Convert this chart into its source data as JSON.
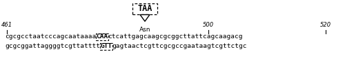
{
  "figsize": [
    5.0,
    1.01
  ],
  "dpi": 100,
  "bg_color": "#ffffff",
  "taa_box_text": "TAA",
  "taa_fontsize": 8.5,
  "asn_text": "Asn",
  "asn_fontsize": 6.5,
  "num_461": "461",
  "num_500": "500",
  "num_520": "520",
  "num_fontsize": 6.0,
  "seq1_before_bold": "cgcgcctaatcccagcaataaaa",
  "seq1_bold": "CAA",
  "seq1_after_bold": "ctcattgagcaagcgcggcttattcagcaagacg",
  "seq2_before_bold": "gcgcggattaggggtcgttatttt",
  "seq2_bold": "GTT",
  "seq2_after_bold": "gagtaactcgttcgcgccgaataagtcgttctgc",
  "seq_fontsize": 6.8,
  "bold_fontsize": 6.8
}
